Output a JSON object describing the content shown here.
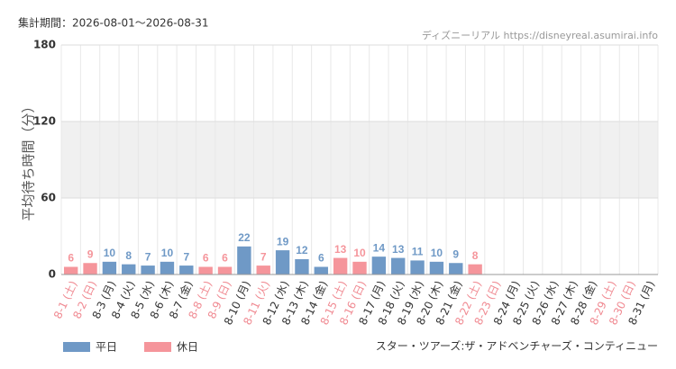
{
  "chart_data": {
    "type": "bar",
    "period": "集計期間：2026-08-01～2026-08-31",
    "source": "ディズニーリアル https://disneyreal.asumirai.info",
    "ylabel": "平均待ち時間（分）",
    "attraction": "スター・ツアーズ:ザ・アドベンチャーズ・コンティニュー",
    "categories": [
      "8-1 (土)",
      "8-2 (日)",
      "8-3 (月)",
      "8-4 (火)",
      "8-5 (水)",
      "8-6 (木)",
      "8-7 (金)",
      "8-8 (土)",
      "8-9 (日)",
      "8-10 (月)",
      "8-11 (火)",
      "8-12 (水)",
      "8-13 (木)",
      "8-14 (金)",
      "8-15 (土)",
      "8-16 (日)",
      "8-17 (月)",
      "8-18 (火)",
      "8-19 (水)",
      "8-20 (木)",
      "8-21 (金)",
      "8-22 (土)",
      "8-23 (日)",
      "8-24 (月)",
      "8-25 (火)",
      "8-26 (水)",
      "8-27 (木)",
      "8-28 (金)",
      "8-29 (土)",
      "8-30 (日)",
      "8-31 (月)"
    ],
    "category_label_colors": [
      "#f08a92",
      "#f08a92",
      "#333333",
      "#333333",
      "#333333",
      "#333333",
      "#333333",
      "#f08a92",
      "#f08a92",
      "#333333",
      "#f08a92",
      "#333333",
      "#333333",
      "#333333",
      "#f08a92",
      "#f08a92",
      "#333333",
      "#333333",
      "#333333",
      "#333333",
      "#333333",
      "#f08a92",
      "#f08a92",
      "#333333",
      "#333333",
      "#333333",
      "#333333",
      "#333333",
      "#f08a92",
      "#f08a92",
      "#333333"
    ],
    "series": [
      {
        "name": "平日",
        "color": "#6f99c6",
        "values": [
          null,
          null,
          10,
          8,
          7,
          10,
          7,
          null,
          null,
          22,
          null,
          19,
          12,
          6,
          null,
          null,
          14,
          13,
          11,
          10,
          9,
          null,
          null,
          null,
          null,
          null,
          null,
          null,
          null,
          null,
          null
        ]
      },
      {
        "name": "休日",
        "color": "#f5959b",
        "values": [
          6,
          9,
          null,
          null,
          null,
          null,
          null,
          6,
          6,
          null,
          7,
          null,
          null,
          null,
          13,
          10,
          null,
          null,
          null,
          null,
          null,
          8,
          null,
          null,
          null,
          null,
          null,
          null,
          null,
          null,
          null
        ]
      }
    ],
    "ylim": [
      0,
      180
    ],
    "yticks": [
      0,
      60,
      120,
      180
    ],
    "shaded_band": [
      60,
      120
    ],
    "grid": true
  }
}
